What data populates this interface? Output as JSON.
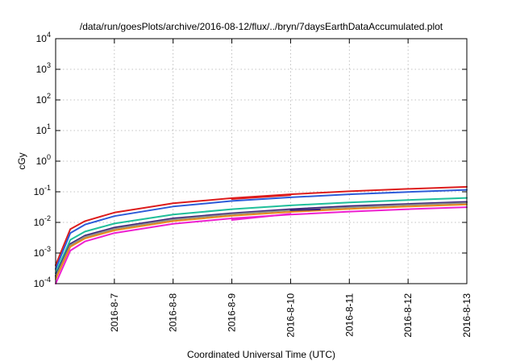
{
  "chart_data": {
    "type": "line",
    "title": "/data/run/goesPlots/archive/2016-08-12/flux/../bryn/7daysEarthDataAccumulated.plot",
    "xlabel": "Coordinated Universal Time (UTC)",
    "ylabel": "cGy",
    "xlim": [
      "2016-08-06",
      "2016-08-13"
    ],
    "ylim": [
      0.0001,
      10000
    ],
    "yscale": "log",
    "grid": true,
    "x_ticks": [
      "2016-8-7",
      "2016-8-8",
      "2016-8-9",
      "2016-8-10",
      "2016-8-11",
      "2016-8-12",
      "2016-8-13"
    ],
    "x_tick_dates": [
      "2016-08-07",
      "2016-08-08",
      "2016-08-09",
      "2016-08-10",
      "2016-08-11",
      "2016-08-12",
      "2016-08-13"
    ],
    "y_ticks": [
      {
        "value": 0.0001,
        "base": "10",
        "exp": "-4"
      },
      {
        "value": 0.001,
        "base": "10",
        "exp": "-3"
      },
      {
        "value": 0.01,
        "base": "10",
        "exp": "-2"
      },
      {
        "value": 0.1,
        "base": "10",
        "exp": "-1"
      },
      {
        "value": 1,
        "base": "10",
        "exp": "0"
      },
      {
        "value": 10,
        "base": "10",
        "exp": "1"
      },
      {
        "value": 100,
        "base": "10",
        "exp": "2"
      },
      {
        "value": 1000,
        "base": "10",
        "exp": "3"
      },
      {
        "value": 10000,
        "base": "10",
        "exp": "4"
      }
    ],
    "series": [
      {
        "color": "#dd1c1c",
        "x": [
          "2016-08-06",
          "2016-08-06 06:00",
          "2016-08-06 12:00",
          "2016-08-07",
          "2016-08-08",
          "2016-08-09",
          "2016-08-10",
          "2016-08-11",
          "2016-08-12",
          "2016-08-13"
        ],
        "values": [
          0.0004,
          0.006,
          0.011,
          0.021,
          0.042,
          0.062,
          0.083,
          0.104,
          0.124,
          0.145
        ]
      },
      {
        "color": "#2c5bd9",
        "x": [
          "2016-08-06",
          "2016-08-06 06:00",
          "2016-08-06 12:00",
          "2016-08-07",
          "2016-08-08",
          "2016-08-09",
          "2016-08-10",
          "2016-08-11",
          "2016-08-12",
          "2016-08-13"
        ],
        "values": [
          0.0003,
          0.0045,
          0.0085,
          0.016,
          0.033,
          0.05,
          0.066,
          0.083,
          0.099,
          0.116
        ]
      },
      {
        "color": "#1fbf9a",
        "x": [
          "2016-08-06",
          "2016-08-06 06:00",
          "2016-08-06 12:00",
          "2016-08-07",
          "2016-08-08",
          "2016-08-09",
          "2016-08-10",
          "2016-08-11",
          "2016-08-12",
          "2016-08-13"
        ],
        "values": [
          0.00022,
          0.0027,
          0.005,
          0.0092,
          0.018,
          0.027,
          0.036,
          0.045,
          0.054,
          0.063
        ]
      },
      {
        "color": "#3a1f7a",
        "x": [
          "2016-08-06",
          "2016-08-06 06:00",
          "2016-08-06 12:00",
          "2016-08-07",
          "2016-08-08",
          "2016-08-09",
          "2016-08-10",
          "2016-08-11",
          "2016-08-12",
          "2016-08-13"
        ],
        "values": [
          0.00018,
          0.002,
          0.0037,
          0.0068,
          0.0135,
          0.02,
          0.027,
          0.034,
          0.04,
          0.047
        ]
      },
      {
        "color": "#8a8a8a",
        "x": [
          "2016-08-06",
          "2016-08-06 06:00",
          "2016-08-06 12:00",
          "2016-08-07",
          "2016-08-08",
          "2016-08-09",
          "2016-08-10",
          "2016-08-11",
          "2016-08-12",
          "2016-08-13"
        ],
        "values": [
          0.00016,
          0.0018,
          0.0034,
          0.0062,
          0.0124,
          0.0186,
          0.0248,
          0.031,
          0.0372,
          0.0434
        ]
      },
      {
        "color": "#e88a1a",
        "x": [
          "2016-08-06",
          "2016-08-06 06:00",
          "2016-08-06 12:00",
          "2016-08-07",
          "2016-08-08",
          "2016-08-09",
          "2016-08-10",
          "2016-08-11",
          "2016-08-12",
          "2016-08-13"
        ],
        "values": [
          0.00014,
          0.0016,
          0.003,
          0.0055,
          0.011,
          0.0165,
          0.022,
          0.0275,
          0.033,
          0.0385
        ]
      },
      {
        "color": "#ee1fd0",
        "x": [
          "2016-08-06",
          "2016-08-06 06:00",
          "2016-08-06 12:00",
          "2016-08-07",
          "2016-08-08",
          "2016-08-09",
          "2016-08-10",
          "2016-08-11",
          "2016-08-12",
          "2016-08-13"
        ],
        "values": [
          0.0001,
          0.0012,
          0.0024,
          0.0045,
          0.009,
          0.0135,
          0.018,
          0.0225,
          0.027,
          0.0315
        ]
      },
      {
        "color": "#ee1fd0",
        "x": [
          "2016-08-09",
          "2016-08-10"
        ],
        "values": [
          0.012,
          0.019
        ]
      },
      {
        "color": "#3a1f7a",
        "x": [
          "2016-08-10",
          "2016-08-10 12:00"
        ],
        "values": [
          0.025,
          0.0265
        ]
      },
      {
        "color": "#dd1c1c",
        "x": [
          "2016-08-09",
          "2016-08-10"
        ],
        "values": [
          0.058,
          0.078
        ]
      }
    ]
  }
}
